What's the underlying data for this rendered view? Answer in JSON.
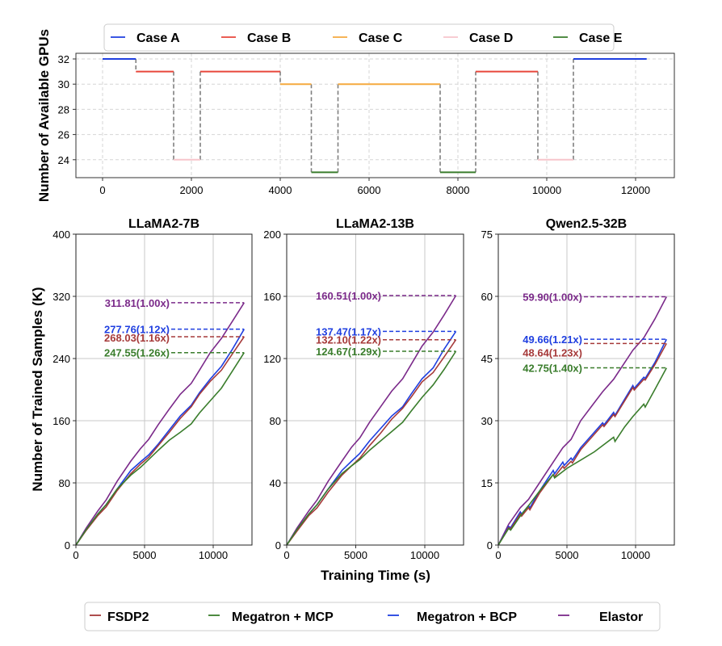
{
  "chart_data": [
    {
      "type": "line",
      "title": "",
      "xlabel": "",
      "ylabel": "Number of Available GPUs",
      "xlim": [
        -600,
        12800
      ],
      "ylim": [
        22.5,
        32.4
      ],
      "xticks": [
        0,
        2000,
        4000,
        6000,
        8000,
        10000,
        12000
      ],
      "yticks": [
        24,
        26,
        28,
        30,
        32
      ],
      "grid": "dashed",
      "legend_position": "top",
      "legend": [
        {
          "name": "Case A",
          "color": "#1f3fe0"
        },
        {
          "name": "Case B",
          "color": "#e8473b"
        },
        {
          "name": "Case C",
          "color": "#f5a93f"
        },
        {
          "name": "Case D",
          "color": "#f7c5cc"
        },
        {
          "name": "Case E",
          "color": "#3a7d2c"
        }
      ],
      "segments": [
        {
          "case": "Case A",
          "x0": 0,
          "x1": 750,
          "y": 32
        },
        {
          "case": "Case B",
          "x0": 750,
          "x1": 1600,
          "y": 31
        },
        {
          "case": "Case D",
          "x0": 1600,
          "x1": 2200,
          "y": 24
        },
        {
          "case": "Case B",
          "x0": 2200,
          "x1": 4000,
          "y": 31
        },
        {
          "case": "Case C",
          "x0": 4000,
          "x1": 4700,
          "y": 30
        },
        {
          "case": "Case E",
          "x0": 4700,
          "x1": 5300,
          "y": 23
        },
        {
          "case": "Case C",
          "x0": 5300,
          "x1": 7600,
          "y": 30
        },
        {
          "case": "Case E",
          "x0": 7600,
          "x1": 8400,
          "y": 23
        },
        {
          "case": "Case B",
          "x0": 8400,
          "x1": 9800,
          "y": 31
        },
        {
          "case": "Case D",
          "x0": 9800,
          "x1": 10600,
          "y": 24
        },
        {
          "case": "Case A",
          "x0": 10600,
          "x1": 12250,
          "y": 32
        }
      ]
    },
    {
      "type": "line",
      "title": "LLaMA2-7B",
      "xlabel": "",
      "ylabel": "Number of Trained Samples (K)",
      "xlim": [
        0,
        12800
      ],
      "ylim": [
        0,
        400
      ],
      "xticks": [
        0,
        5000,
        10000
      ],
      "yticks": [
        0,
        80,
        160,
        240,
        320,
        400
      ],
      "grid": "solid",
      "series": [
        {
          "name": "Elastor",
          "color": "#7b2a8a",
          "final": 311.81,
          "label": "311.81(1.00x)",
          "x": [
            0,
            750,
            1600,
            2200,
            3000,
            4000,
            4700,
            5300,
            6000,
            6800,
            7600,
            8400,
            9000,
            9800,
            10600,
            11400,
            12250
          ],
          "y": [
            0,
            22,
            44,
            58,
            82,
            108,
            124,
            136,
            155,
            175,
            194,
            208,
            225,
            248,
            266,
            288,
            311.81
          ]
        },
        {
          "name": "Megatron + BCP",
          "color": "#1f3fe0",
          "final": 277.76,
          "label": "277.76(1.12x)",
          "x": [
            0,
            750,
            1600,
            2200,
            3000,
            4000,
            4700,
            5300,
            6000,
            6800,
            7600,
            8400,
            9000,
            9800,
            10600,
            11400,
            12250
          ],
          "y": [
            0,
            20,
            40,
            52,
            72,
            96,
            107,
            116,
            130,
            148,
            166,
            180,
            196,
            214,
            230,
            252,
            277.76
          ]
        },
        {
          "name": "FSDP2",
          "color": "#a63a3a",
          "final": 268.03,
          "label": "268.03(1.16x)",
          "x": [
            0,
            750,
            1600,
            2200,
            3000,
            4000,
            4700,
            5300,
            6000,
            6800,
            7600,
            8400,
            9000,
            9800,
            10600,
            11400,
            12250
          ],
          "y": [
            0,
            19,
            38,
            49,
            70,
            92,
            104,
            113,
            128,
            145,
            163,
            178,
            194,
            211,
            225,
            246,
            268.03
          ]
        },
        {
          "name": "Megatron + MCP",
          "color": "#3a7d2c",
          "final": 247.55,
          "label": "247.55(1.26x)",
          "x": [
            0,
            750,
            1600,
            2200,
            3000,
            4000,
            4700,
            5300,
            6000,
            6800,
            7600,
            8400,
            9000,
            9800,
            10600,
            11400,
            12250
          ],
          "y": [
            0,
            20,
            40,
            52,
            72,
            90,
            100,
            110,
            122,
            135,
            145,
            156,
            170,
            186,
            202,
            224,
            247.55
          ]
        }
      ]
    },
    {
      "type": "line",
      "title": "LLaMA2-13B",
      "xlabel": "Training Time (s)",
      "ylabel": "",
      "xlim": [
        0,
        12800
      ],
      "ylim": [
        0,
        200
      ],
      "xticks": [
        0,
        5000,
        10000
      ],
      "yticks": [
        0,
        40,
        80,
        120,
        160,
        200
      ],
      "grid": "solid",
      "series": [
        {
          "name": "Elastor",
          "color": "#7b2a8a",
          "final": 160.51,
          "label": "160.51(1.00x)",
          "x": [
            0,
            750,
            1600,
            2200,
            3000,
            4000,
            4700,
            5300,
            6000,
            6800,
            7600,
            8400,
            9000,
            9800,
            10600,
            11400,
            12250
          ],
          "y": [
            0,
            11,
            22,
            29,
            41,
            54,
            63,
            69,
            79,
            89,
            99,
            107,
            116,
            128,
            137,
            148,
            160.51
          ]
        },
        {
          "name": "Megatron + BCP",
          "color": "#1f3fe0",
          "final": 137.47,
          "label": "137.47(1.17x)",
          "x": [
            0,
            750,
            1600,
            2200,
            3000,
            4000,
            4700,
            5300,
            6000,
            6800,
            7600,
            8400,
            9000,
            9800,
            10600,
            11400,
            12250
          ],
          "y": [
            0,
            10,
            20,
            26,
            36,
            48,
            54,
            59,
            67,
            75,
            83,
            89,
            97,
            107,
            114,
            126,
            137.47
          ]
        },
        {
          "name": "FSDP2",
          "color": "#a63a3a",
          "final": 132.1,
          "label": "132.10(1.22x)",
          "x": [
            0,
            750,
            1600,
            2200,
            3000,
            4000,
            4700,
            5300,
            6000,
            6800,
            7600,
            8400,
            9000,
            9800,
            10600,
            11400,
            12250
          ],
          "y": [
            0,
            9,
            19,
            24,
            34,
            45,
            51,
            56,
            64,
            72,
            81,
            88,
            95,
            105,
            111,
            121,
            132.1
          ]
        },
        {
          "name": "Megatron + MCP",
          "color": "#3a7d2c",
          "final": 124.67,
          "label": "124.67(1.29x)",
          "x": [
            0,
            750,
            1600,
            2200,
            3000,
            4000,
            4700,
            5300,
            6000,
            6800,
            7600,
            8400,
            9000,
            9800,
            10600,
            11400,
            12250
          ],
          "y": [
            0,
            10,
            20,
            26,
            36,
            46,
            51,
            55,
            61,
            67,
            73,
            79,
            86,
            95,
            103,
            113,
            124.67
          ]
        }
      ]
    },
    {
      "type": "line",
      "title": "Qwen2.5-32B",
      "xlabel": "",
      "ylabel": "",
      "xlim": [
        0,
        12800
      ],
      "ylim": [
        0,
        75
      ],
      "xticks": [
        0,
        5000,
        10000
      ],
      "yticks": [
        0,
        15,
        30,
        45,
        60,
        75
      ],
      "grid": "solid",
      "series": [
        {
          "name": "Elastor",
          "color": "#7b2a8a",
          "final": 59.9,
          "label": "59.90(1.00x)",
          "x": [
            0,
            750,
            1600,
            2200,
            3000,
            4000,
            4700,
            5300,
            6000,
            6800,
            7600,
            8400,
            9000,
            9800,
            10600,
            11400,
            12250
          ],
          "y": [
            0,
            5,
            9,
            11,
            15,
            20,
            23.5,
            25.5,
            30,
            33.5,
            37,
            40,
            43,
            47,
            50,
            54.5,
            59.9
          ]
        },
        {
          "name": "Megatron + BCP",
          "color": "#1f3fe0",
          "final": 49.66,
          "label": "49.66(1.21x)",
          "x": [
            0,
            750,
            900,
            1600,
            1700,
            2200,
            2300,
            3000,
            4000,
            4100,
            4700,
            4800,
            5300,
            5400,
            6000,
            6800,
            7600,
            7700,
            8400,
            8500,
            9800,
            9900,
            10600,
            10700,
            11400,
            12250
          ],
          "y": [
            0,
            4.5,
            4.2,
            8,
            7.5,
            9.5,
            9.0,
            13,
            18,
            17.2,
            20,
            19.2,
            21,
            20.5,
            23.5,
            26.5,
            29.5,
            29.0,
            32,
            31.3,
            38.5,
            37.8,
            40.5,
            40.2,
            44,
            49.66
          ]
        },
        {
          "name": "FSDP2",
          "color": "#a63a3a",
          "final": 48.64,
          "label": "48.64(1.23x)",
          "x": [
            0,
            750,
            900,
            1600,
            1700,
            2200,
            2300,
            3000,
            4000,
            4100,
            4700,
            4800,
            5300,
            5400,
            6000,
            6800,
            7600,
            7700,
            8400,
            8500,
            9800,
            9900,
            10600,
            10700,
            11400,
            12250
          ],
          "y": [
            0,
            4.2,
            3.9,
            7.5,
            7.0,
            9.0,
            8.5,
            12.5,
            17,
            16.5,
            19,
            18.5,
            20.2,
            19.8,
            23,
            26,
            29,
            28.6,
            31.5,
            31.0,
            38,
            37.4,
            40,
            39.8,
            43.5,
            48.64
          ]
        },
        {
          "name": "Megatron + MCP",
          "color": "#3a7d2c",
          "final": 42.75,
          "label": "42.75(1.40x)",
          "x": [
            0,
            750,
            900,
            1600,
            2200,
            3000,
            4000,
            4100,
            5000,
            6000,
            7000,
            8400,
            8500,
            9200,
            9800,
            10600,
            10700,
            11400,
            12250
          ],
          "y": [
            0,
            4.0,
            3.6,
            7.0,
            9.5,
            13,
            17,
            16.2,
            18.5,
            20.5,
            22.5,
            26,
            25,
            28.5,
            31,
            34,
            33.3,
            37.5,
            42.75
          ]
        }
      ]
    }
  ],
  "legend_bottom": [
    {
      "name": "FSDP2",
      "color": "#a63a3a"
    },
    {
      "name": "Megatron + MCP",
      "color": "#3a7d2c"
    },
    {
      "name": "Megatron + BCP",
      "color": "#1f3fe0"
    },
    {
      "name": "Elastor",
      "color": "#7b2a8a"
    }
  ]
}
